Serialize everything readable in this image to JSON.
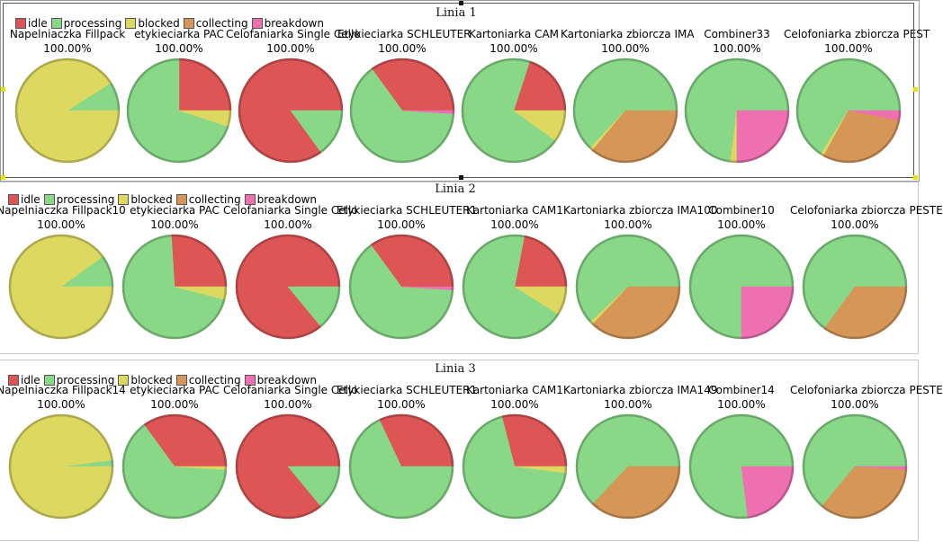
{
  "colors": {
    "idle": "#dd5555",
    "processing": "#88d888",
    "blocked": "#dcd860",
    "collecting": "#d69658",
    "breakdown": "#ee70b0"
  },
  "chart_data": [
    {
      "type": "pie",
      "title": "Linia 1",
      "legend": [
        "idle",
        "processing",
        "blocked",
        "collecting",
        "breakdown"
      ],
      "legend_placement": "top-left",
      "pies": [
        {
          "label": "Napelniaczka Fillpack",
          "percent_label": "100.00%",
          "slices": {
            "idle": 0,
            "processing": 9,
            "blocked": 91,
            "collecting": 0,
            "breakdown": 0
          }
        },
        {
          "label": "etykieciarka PAC",
          "percent_label": "100.00%",
          "slices": {
            "idle": 25,
            "processing": 70,
            "blocked": 5,
            "collecting": 0,
            "breakdown": 0
          }
        },
        {
          "label": "Celofaniarka Single Cello",
          "percent_label": "100.00%",
          "slices": {
            "idle": 85,
            "processing": 15,
            "blocked": 0,
            "collecting": 0,
            "breakdown": 0
          }
        },
        {
          "label": "Etykieciarka SCHLEUTER",
          "percent_label": "100.00%",
          "slices": {
            "idle": 35,
            "processing": 64,
            "blocked": 0,
            "collecting": 0,
            "breakdown": 1
          }
        },
        {
          "label": "Kartoniarka CAM",
          "percent_label": "100.00%",
          "slices": {
            "idle": 20,
            "processing": 70,
            "blocked": 10,
            "collecting": 0,
            "breakdown": 0
          }
        },
        {
          "label": "Kartoniarka zbiorcza IMA",
          "percent_label": "100.00%",
          "slices": {
            "idle": 0,
            "processing": 63,
            "blocked": 1,
            "collecting": 36,
            "breakdown": 0
          }
        },
        {
          "label": "Combiner33",
          "percent_label": "100.00%",
          "slices": {
            "idle": 0,
            "processing": 73,
            "blocked": 2,
            "collecting": 0,
            "breakdown": 25
          }
        },
        {
          "label": "Celofoniarka zbiorcza PEST",
          "percent_label": "100.00%",
          "slices": {
            "idle": 0,
            "processing": 66,
            "blocked": 1,
            "collecting": 30,
            "breakdown": 3
          }
        }
      ]
    },
    {
      "type": "pie",
      "title": "Linia 2",
      "legend": [
        "idle",
        "processing",
        "blocked",
        "collecting",
        "breakdown"
      ],
      "legend_placement": "top-left",
      "pies": [
        {
          "label": "Napelniaczka Fillpack10",
          "percent_label": "100.00%",
          "slices": {
            "idle": 0,
            "processing": 10,
            "blocked": 90,
            "collecting": 0,
            "breakdown": 0
          }
        },
        {
          "label": "etykieciarka PAC",
          "percent_label": "100.00%",
          "slices": {
            "idle": 26,
            "processing": 70,
            "blocked": 4,
            "collecting": 0,
            "breakdown": 0
          }
        },
        {
          "label": "Celofaniarka Single Cello",
          "percent_label": "100.00%",
          "slices": {
            "idle": 86,
            "processing": 14,
            "blocked": 0,
            "collecting": 0,
            "breakdown": 0
          }
        },
        {
          "label": "Etykieciarka SCHLEUTER1",
          "percent_label": "100.00%",
          "slices": {
            "idle": 35,
            "processing": 64,
            "blocked": 0,
            "collecting": 0,
            "breakdown": 1
          }
        },
        {
          "label": "Kartoniarka CAM1",
          "percent_label": "100.00%",
          "slices": {
            "idle": 22,
            "processing": 69,
            "blocked": 9,
            "collecting": 0,
            "breakdown": 0
          }
        },
        {
          "label": "Kartoniarka zbiorcza IMA100",
          "percent_label": "100.00%",
          "slices": {
            "idle": 0,
            "processing": 62,
            "blocked": 1,
            "collecting": 37,
            "breakdown": 0
          }
        },
        {
          "label": "Combiner10",
          "percent_label": "100.00%",
          "slices": {
            "idle": 0,
            "processing": 75,
            "blocked": 0,
            "collecting": 0,
            "breakdown": 25
          }
        },
        {
          "label": "Celofoniarka zbiorcza PESTE",
          "percent_label": "100.00%",
          "slices": {
            "idle": 0,
            "processing": 65,
            "blocked": 0,
            "collecting": 35,
            "breakdown": 0
          }
        }
      ]
    },
    {
      "type": "pie",
      "title": "Linia 3",
      "legend": [
        "idle",
        "processing",
        "blocked",
        "collecting",
        "breakdown"
      ],
      "legend_placement": "top-left",
      "pies": [
        {
          "label": "Napelniaczka Fillpack14",
          "percent_label": "100.00%",
          "slices": {
            "idle": 0,
            "processing": 2,
            "blocked": 98,
            "collecting": 0,
            "breakdown": 0
          }
        },
        {
          "label": "etykieciarka PAC",
          "percent_label": "100.00%",
          "slices": {
            "idle": 35,
            "processing": 64,
            "blocked": 1,
            "collecting": 0,
            "breakdown": 0
          }
        },
        {
          "label": "Celofaniarka Single Cello",
          "percent_label": "100.00%",
          "slices": {
            "idle": 86,
            "processing": 14,
            "blocked": 0,
            "collecting": 0,
            "breakdown": 0
          }
        },
        {
          "label": "Etykieciarka SCHLEUTER1",
          "percent_label": "100.00%",
          "slices": {
            "idle": 32,
            "processing": 68,
            "blocked": 0,
            "collecting": 0,
            "breakdown": 0
          }
        },
        {
          "label": "Kartoniarka CAM1",
          "percent_label": "100.00%",
          "slices": {
            "idle": 29,
            "processing": 69,
            "blocked": 2,
            "collecting": 0,
            "breakdown": 0
          }
        },
        {
          "label": "Kartoniarka zbiorcza IMA149",
          "percent_label": "100.00%",
          "slices": {
            "idle": 0,
            "processing": 63,
            "blocked": 0,
            "collecting": 37,
            "breakdown": 0
          }
        },
        {
          "label": "Combiner14",
          "percent_label": "100.00%",
          "slices": {
            "idle": 0,
            "processing": 77,
            "blocked": 0,
            "collecting": 0,
            "breakdown": 23
          }
        },
        {
          "label": "Celofoniarka zbiorcza PESTE",
          "percent_label": "100.00%",
          "slices": {
            "idle": 0,
            "processing": 64,
            "blocked": 0,
            "collecting": 35,
            "breakdown": 1
          }
        }
      ]
    }
  ]
}
